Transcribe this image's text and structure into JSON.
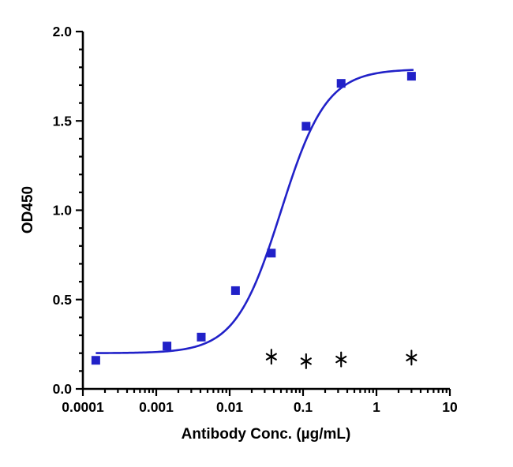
{
  "figure": {
    "background": "#ffffff",
    "axis_color": "#000000"
  },
  "chart_data": {
    "type": "scatter",
    "title": "",
    "xlabel": "Antibody Conc. (µg/mL)",
    "ylabel": "OD450",
    "x_scale": "log10",
    "xlim": [
      0.0001,
      10
    ],
    "ylim": [
      0.0,
      2.0
    ],
    "x_major_ticks": [
      0.0001,
      0.001,
      0.01,
      0.1,
      1,
      10
    ],
    "x_tick_labels": [
      "0.0001",
      "0.001",
      "0.01",
      "0.1",
      "1",
      "10"
    ],
    "y_major_ticks": [
      0.0,
      0.5,
      1.0,
      1.5,
      2.0
    ],
    "y_tick_labels": [
      "0.0",
      "0.5",
      "1.0",
      "1.5",
      "2.0"
    ],
    "y_minor_step": 0.1,
    "grid": false,
    "legend": "none",
    "series": [
      {
        "name": "series_1",
        "marker": "square",
        "color": "#2121c8",
        "points": [
          {
            "x": 0.00015,
            "y": 0.16
          },
          {
            "x": 0.0014,
            "y": 0.24
          },
          {
            "x": 0.0041,
            "y": 0.29
          },
          {
            "x": 0.012,
            "y": 0.55
          },
          {
            "x": 0.037,
            "y": 0.76
          },
          {
            "x": 0.11,
            "y": 1.47
          },
          {
            "x": 0.33,
            "y": 1.71
          },
          {
            "x": 3.0,
            "y": 1.75
          }
        ],
        "fit": {
          "model": "4PL",
          "bottom": 0.2,
          "top": 1.79,
          "ec50": 0.05,
          "hill": 1.4,
          "x_start": 0.00015,
          "x_end": 3.2
        }
      },
      {
        "name": "series_2",
        "marker": "asterisk",
        "color": "#000000",
        "points": [
          {
            "x": 0.037,
            "y": 0.18
          },
          {
            "x": 0.11,
            "y": 0.155
          },
          {
            "x": 0.33,
            "y": 0.165
          },
          {
            "x": 3.0,
            "y": 0.175
          }
        ]
      }
    ]
  }
}
